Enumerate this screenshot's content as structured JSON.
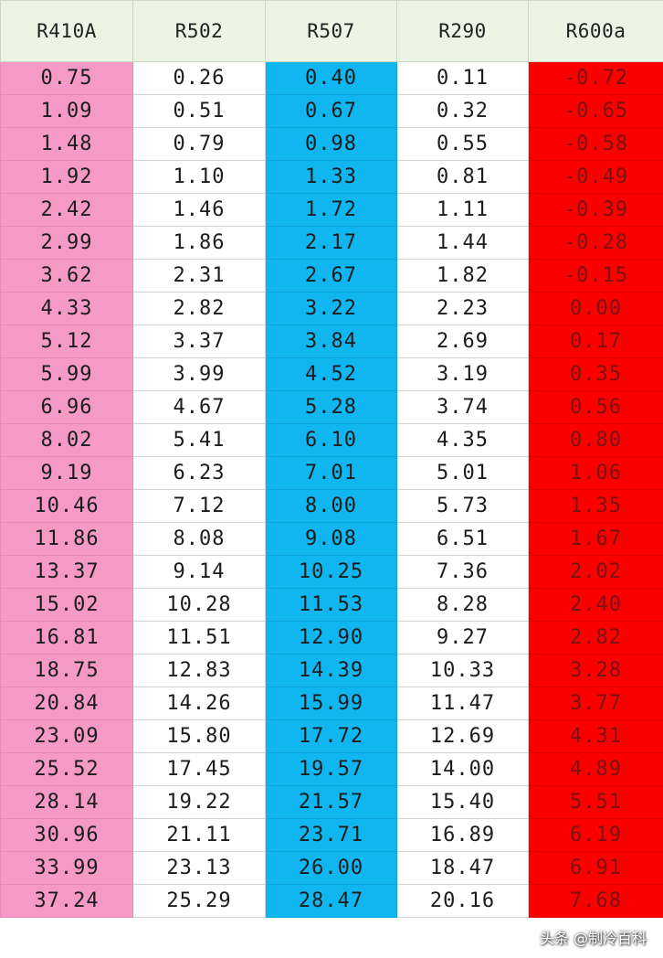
{
  "table": {
    "headers": [
      "R410A",
      "R502",
      "R507",
      "R290",
      "R600a"
    ],
    "column_colors": [
      "#f59ac7",
      "#ffffff",
      "#10b6f0",
      "#ffffff",
      "#fb0000"
    ],
    "header_color": "#eaf6e3",
    "rows": [
      [
        "0.75",
        "0.26",
        "0.40",
        "0.11",
        "-0.72"
      ],
      [
        "1.09",
        "0.51",
        "0.67",
        "0.32",
        "-0.65"
      ],
      [
        "1.48",
        "0.79",
        "0.98",
        "0.55",
        "-0.58"
      ],
      [
        "1.92",
        "1.10",
        "1.33",
        "0.81",
        "-0.49"
      ],
      [
        "2.42",
        "1.46",
        "1.72",
        "1.11",
        "-0.39"
      ],
      [
        "2.99",
        "1.86",
        "2.17",
        "1.44",
        "-0.28"
      ],
      [
        "3.62",
        "2.31",
        "2.67",
        "1.82",
        "-0.15"
      ],
      [
        "4.33",
        "2.82",
        "3.22",
        "2.23",
        "0.00"
      ],
      [
        "5.12",
        "3.37",
        "3.84",
        "2.69",
        "0.17"
      ],
      [
        "5.99",
        "3.99",
        "4.52",
        "3.19",
        "0.35"
      ],
      [
        "6.96",
        "4.67",
        "5.28",
        "3.74",
        "0.56"
      ],
      [
        "8.02",
        "5.41",
        "6.10",
        "4.35",
        "0.80"
      ],
      [
        "9.19",
        "6.23",
        "7.01",
        "5.01",
        "1.06"
      ],
      [
        "10.46",
        "7.12",
        "8.00",
        "5.73",
        "1.35"
      ],
      [
        "11.86",
        "8.08",
        "9.08",
        "6.51",
        "1.67"
      ],
      [
        "13.37",
        "9.14",
        "10.25",
        "7.36",
        "2.02"
      ],
      [
        "15.02",
        "10.28",
        "11.53",
        "8.28",
        "2.40"
      ],
      [
        "16.81",
        "11.51",
        "12.90",
        "9.27",
        "2.82"
      ],
      [
        "18.75",
        "12.83",
        "14.39",
        "10.33",
        "3.28"
      ],
      [
        "20.84",
        "14.26",
        "15.99",
        "11.47",
        "3.77"
      ],
      [
        "23.09",
        "15.80",
        "17.72",
        "12.69",
        "4.31"
      ],
      [
        "25.52",
        "17.45",
        "19.57",
        "14.00",
        "4.89"
      ],
      [
        "28.14",
        "19.22",
        "21.57",
        "15.40",
        "5.51"
      ],
      [
        "30.96",
        "21.11",
        "23.71",
        "16.89",
        "6.19"
      ],
      [
        "33.99",
        "23.13",
        "26.00",
        "18.47",
        "6.91"
      ],
      [
        "37.24",
        "25.29",
        "28.47",
        "20.16",
        "7.68"
      ]
    ]
  },
  "watermark": {
    "text": "头条 @制冷百科",
    "icon": "wechat-bubble-icon"
  }
}
